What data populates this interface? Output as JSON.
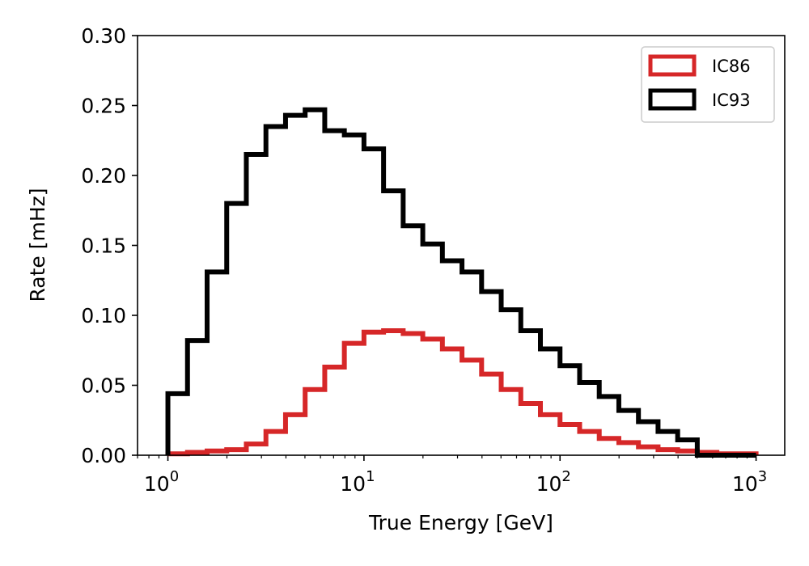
{
  "chart_data": {
    "type": "histogram-step",
    "title": "",
    "xlabel": "True Energy [GeV]",
    "ylabel": "Rate [mHz]",
    "xscale": "log",
    "xlim": [
      0.7,
      1400
    ],
    "ylim": [
      0,
      0.3
    ],
    "yticks": [
      {
        "value": 0.0,
        "label": "0.00"
      },
      {
        "value": 0.05,
        "label": "0.05"
      },
      {
        "value": 0.1,
        "label": "0.10"
      },
      {
        "value": 0.15,
        "label": "0.15"
      },
      {
        "value": 0.2,
        "label": "0.20"
      },
      {
        "value": 0.25,
        "label": "0.25"
      },
      {
        "value": 0.3,
        "label": "0.30"
      }
    ],
    "xticks": [
      {
        "value": 1,
        "base": "10",
        "exp": "0"
      },
      {
        "value": 10,
        "base": "10",
        "exp": "1"
      },
      {
        "value": 100,
        "base": "10",
        "exp": "2"
      },
      {
        "value": 1000,
        "base": "10",
        "exp": "3"
      }
    ],
    "bin_edges_log10": {
      "start": 0,
      "stop": 3,
      "count": 30
    },
    "legend_position": "upper right",
    "series": [
      {
        "name": "IC86",
        "color": "#d62728",
        "values": [
          0.001,
          0.002,
          0.003,
          0.004,
          0.008,
          0.017,
          0.029,
          0.047,
          0.063,
          0.08,
          0.088,
          0.089,
          0.087,
          0.083,
          0.076,
          0.068,
          0.058,
          0.047,
          0.037,
          0.029,
          0.022,
          0.017,
          0.012,
          0.009,
          0.006,
          0.004,
          0.003,
          0.002,
          0.001,
          0.001
        ]
      },
      {
        "name": "IC93",
        "color": "#000000",
        "values": [
          0.044,
          0.082,
          0.131,
          0.18,
          0.215,
          0.235,
          0.243,
          0.247,
          0.232,
          0.229,
          0.219,
          0.189,
          0.164,
          0.151,
          0.139,
          0.131,
          0.117,
          0.104,
          0.089,
          0.076,
          0.064,
          0.052,
          0.042,
          0.032,
          0.024,
          0.017,
          0.011,
          0.0,
          0.0,
          0.0
        ]
      }
    ]
  }
}
